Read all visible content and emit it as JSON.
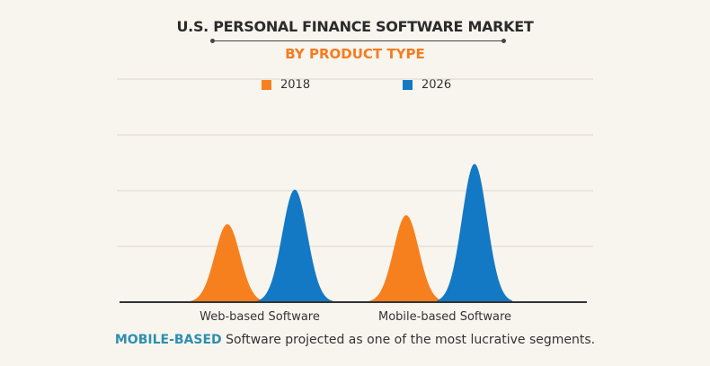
{
  "chart_data": {
    "type": "area",
    "title": "U.S. PERSONAL FINANCE SOFTWARE MARKET",
    "subtitle": "BY PRODUCT TYPE",
    "categories": [
      "Web-based Software",
      "Mobile-based Software"
    ],
    "series": [
      {
        "name": "2018",
        "color": "#f7801e",
        "values": [
          1.4,
          1.56
        ]
      },
      {
        "name": "2026",
        "color": "#1479c4",
        "values": [
          2.02,
          2.48
        ]
      }
    ],
    "ylim": [
      0,
      4
    ],
    "grid": true,
    "legend": "top-center",
    "xlabel": "",
    "ylabel": ""
  },
  "footer": {
    "highlight": "MOBILE-BASED",
    "text": " Software projected as one of the most lucrative segments."
  }
}
